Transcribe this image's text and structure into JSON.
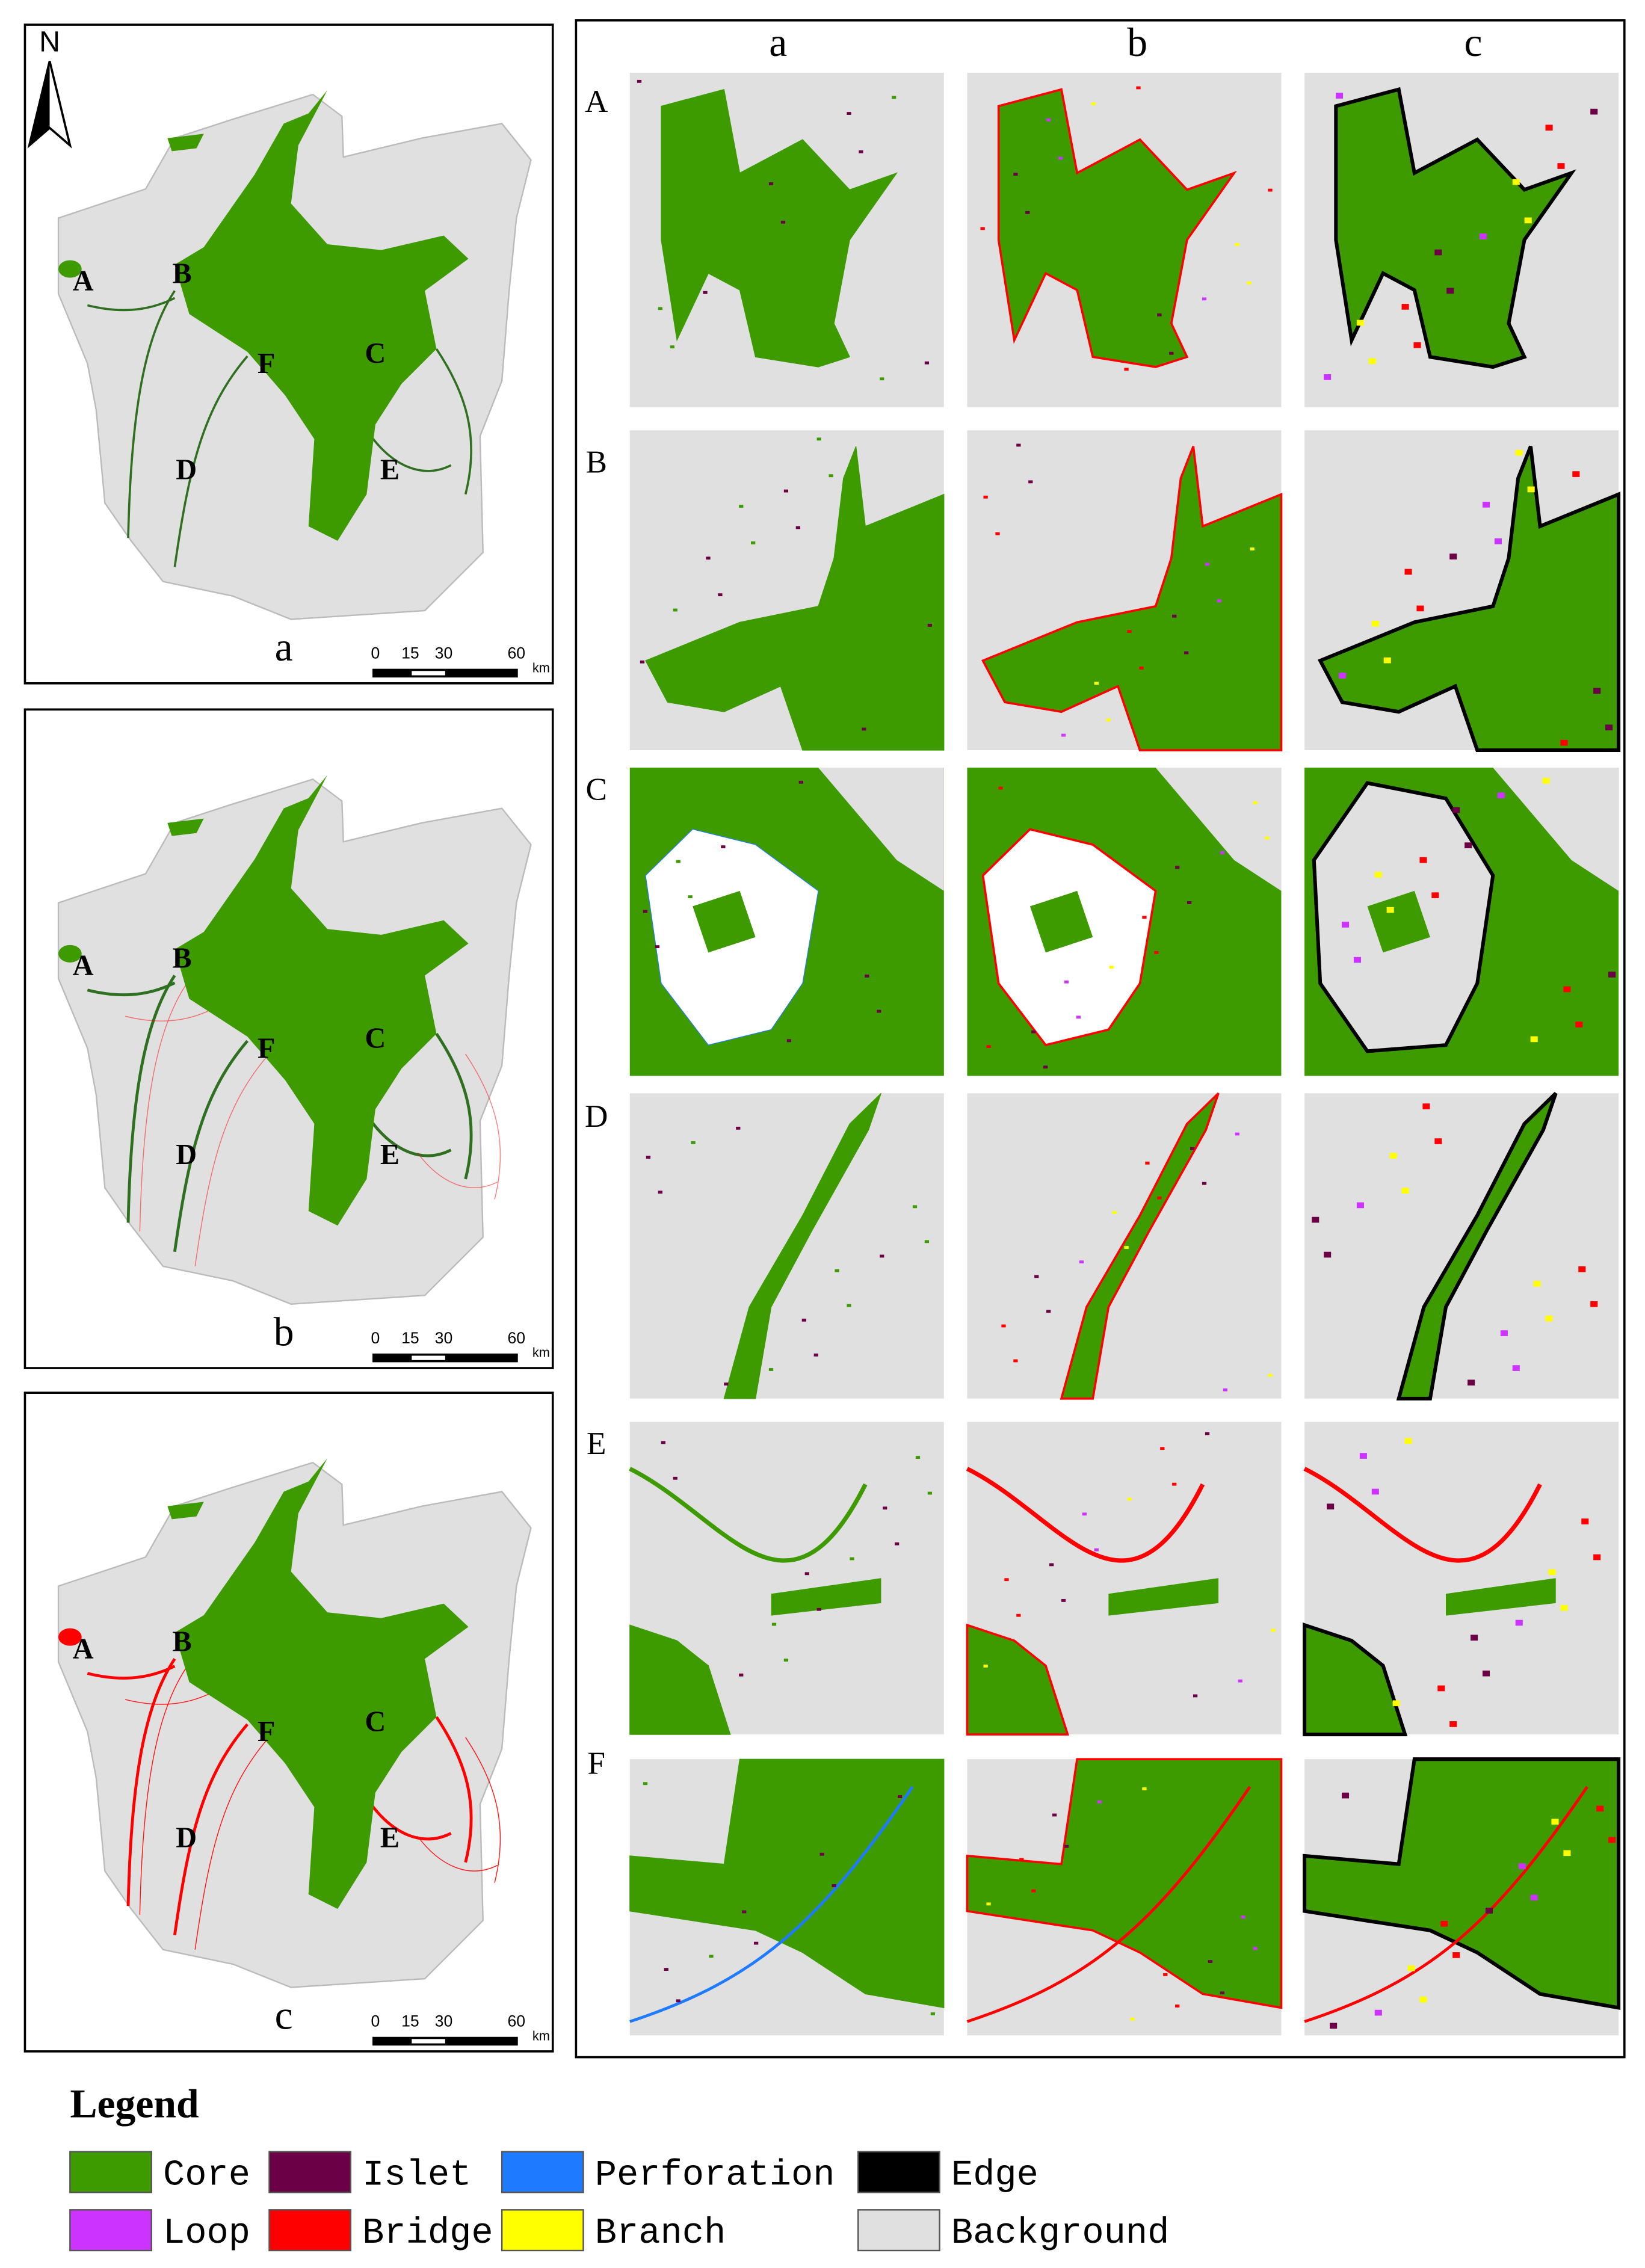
{
  "north": "N",
  "maps": [
    {
      "label": "a",
      "regions": [
        "A",
        "B",
        "C",
        "D",
        "E",
        "F"
      ]
    },
    {
      "label": "b",
      "regions": [
        "A",
        "B",
        "C",
        "D",
        "E",
        "F"
      ]
    },
    {
      "label": "c",
      "regions": [
        "A",
        "B",
        "C",
        "D",
        "E",
        "F"
      ]
    }
  ],
  "scale_bar": {
    "ticks": [
      0,
      15,
      30,
      60
    ],
    "unit": "km"
  },
  "grid": {
    "columns": [
      "a",
      "b",
      "c"
    ],
    "rows": [
      "A",
      "B",
      "C",
      "D",
      "E",
      "F"
    ]
  },
  "legend": {
    "title": "Legend",
    "items": [
      {
        "label": "Core",
        "color": "#3d9b00"
      },
      {
        "label": "Islet",
        "color": "#6b0046"
      },
      {
        "label": "Perforation",
        "color": "#1e7bff"
      },
      {
        "label": "Edge",
        "color": "#000000"
      },
      {
        "label": "Loop",
        "color": "#cc33ff"
      },
      {
        "label": "Bridge",
        "color": "#ff0000"
      },
      {
        "label": "Branch",
        "color": "#ffff00"
      },
      {
        "label": "Background",
        "color": "#e0e0e0"
      }
    ]
  }
}
